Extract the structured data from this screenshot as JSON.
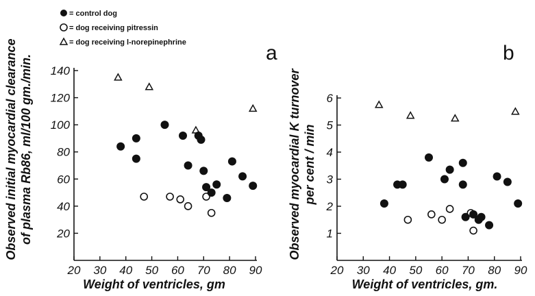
{
  "legend": [
    {
      "marker": "filled-circle",
      "label": "= control dog"
    },
    {
      "marker": "open-circle",
      "label": "= dog receiving pitressin"
    },
    {
      "marker": "open-triangle",
      "label": "= dog receiving l-norepinephrine"
    }
  ],
  "chart_data": [
    {
      "type": "scatter",
      "panel_label": "a",
      "title": "",
      "xlabel": "Weight of ventricles, gm",
      "ylabel_lines": [
        "Observed initial myocardial clearance",
        "of plasma Rb86, ml/100 gm./min."
      ],
      "xlim": [
        20,
        90
      ],
      "ylim": [
        0,
        140
      ],
      "xticks": [
        20,
        30,
        40,
        50,
        60,
        70,
        80,
        90
      ],
      "yticks": [
        20,
        40,
        60,
        80,
        100,
        120,
        140
      ],
      "grid": false,
      "series": [
        {
          "name": "control dog",
          "marker": "filled-circle",
          "x": [
            38,
            44,
            44,
            55,
            62,
            64,
            68,
            69,
            70,
            71,
            73,
            75,
            79,
            81,
            85,
            89
          ],
          "y": [
            84,
            90,
            75,
            100,
            92,
            70,
            92,
            89,
            66,
            54,
            50,
            56,
            46,
            73,
            62,
            55
          ]
        },
        {
          "name": "dog receiving pitressin",
          "marker": "open-circle",
          "x": [
            47,
            57,
            61,
            64,
            71,
            73
          ],
          "y": [
            47,
            47,
            45,
            40,
            47,
            35
          ]
        },
        {
          "name": "dog receiving l-norepinephrine",
          "marker": "open-triangle",
          "x": [
            37,
            49,
            67,
            89
          ],
          "y": [
            135,
            128,
            96,
            112
          ]
        }
      ]
    },
    {
      "type": "scatter",
      "panel_label": "b",
      "title": "",
      "xlabel": "Weight of ventricles, gm.",
      "ylabel_lines": [
        "Observed myocardial K turnover",
        "per cent / min"
      ],
      "xlim": [
        20,
        90
      ],
      "ylim": [
        0,
        6
      ],
      "xticks": [
        20,
        30,
        40,
        50,
        60,
        70,
        80,
        90
      ],
      "yticks": [
        1,
        2,
        3,
        4,
        5,
        6
      ],
      "grid": false,
      "series": [
        {
          "name": "control dog",
          "marker": "filled-circle",
          "x": [
            38,
            43,
            45,
            55,
            61,
            63,
            68,
            68,
            69,
            72,
            74,
            75,
            78,
            81,
            85,
            89
          ],
          "y": [
            2.1,
            2.8,
            2.8,
            3.8,
            3.0,
            3.35,
            3.6,
            2.8,
            1.6,
            1.7,
            1.5,
            1.6,
            1.3,
            3.1,
            2.9,
            2.1
          ],
          "note": ""
        },
        {
          "name": "dog receiving pitressin",
          "marker": "open-circle",
          "x": [
            47,
            56,
            60,
            63,
            71,
            72
          ],
          "y": [
            1.5,
            1.7,
            1.5,
            1.9,
            1.75,
            1.1
          ]
        },
        {
          "name": "dog receiving l-norepinephrine",
          "marker": "open-triangle",
          "x": [
            36,
            48,
            65,
            88
          ],
          "y": [
            5.75,
            5.35,
            5.25,
            5.5
          ]
        }
      ]
    }
  ]
}
